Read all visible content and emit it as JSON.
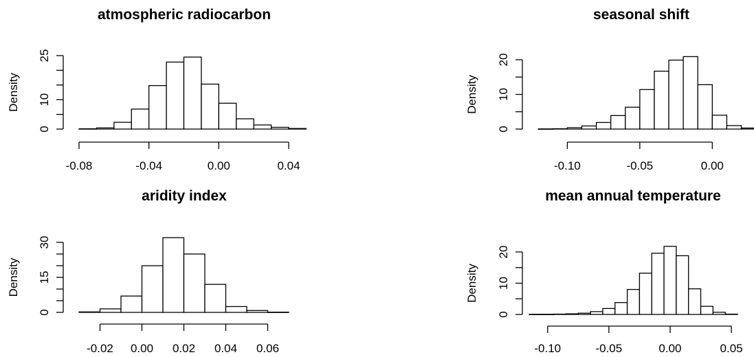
{
  "chart_data": [
    {
      "type": "bar",
      "title": "atmospheric radiocarbon",
      "ylabel": "Density",
      "xlabel": "",
      "xticks": [
        -0.08,
        -0.04,
        0.0,
        0.04
      ],
      "xtick_labels": [
        "-0.08",
        "-0.04",
        "0.00",
        "0.04"
      ],
      "yticks": [
        0,
        5,
        10,
        15,
        20,
        25
      ],
      "ytick_labels": [
        "0",
        "",
        "10",
        "",
        "",
        "25"
      ],
      "bin_edges": [
        -0.08,
        -0.07,
        -0.06,
        -0.05,
        -0.04,
        -0.03,
        -0.02,
        -0.01,
        0.0,
        0.01,
        0.02,
        0.03,
        0.04,
        0.05
      ],
      "values": [
        0.1,
        0.4,
        2.3,
        6.8,
        14.8,
        22.8,
        24.5,
        15.3,
        8.8,
        3.5,
        1.4,
        0.6,
        0.2
      ]
    },
    {
      "type": "bar",
      "title": "seasonal shift",
      "ylabel": "Density",
      "xlabel": "",
      "xticks": [
        -0.1,
        -0.05,
        0.0
      ],
      "xtick_labels": [
        "-0.10",
        "-0.05",
        "0.00"
      ],
      "yticks": [
        0,
        5,
        10,
        15,
        20
      ],
      "ytick_labels": [
        "0",
        "",
        "10",
        "",
        "20"
      ],
      "bin_edges": [
        -0.12,
        -0.11,
        -0.1,
        -0.09,
        -0.08,
        -0.07,
        -0.06,
        -0.05,
        -0.04,
        -0.03,
        -0.02,
        -0.01,
        0.0,
        0.01,
        0.02,
        0.03
      ],
      "values": [
        0.05,
        0.1,
        0.4,
        0.9,
        1.9,
        3.9,
        6.3,
        11.4,
        16.7,
        19.9,
        20.9,
        12.8,
        4.0,
        1.0,
        0.3
      ]
    },
    {
      "type": "bar",
      "title": "aridity index",
      "ylabel": "Density",
      "xlabel": "",
      "xticks": [
        -0.02,
        0.0,
        0.02,
        0.04,
        0.06
      ],
      "xtick_labels": [
        "-0.02",
        "0.00",
        "0.02",
        "0.04",
        "0.06"
      ],
      "yticks": [
        0,
        5,
        10,
        15,
        20,
        25,
        30
      ],
      "ytick_labels": [
        "0",
        "",
        "",
        "15",
        "",
        "",
        "30"
      ],
      "bin_edges": [
        -0.03,
        -0.02,
        -0.01,
        0.0,
        0.01,
        0.02,
        0.03,
        0.04,
        0.05,
        0.06,
        0.07
      ],
      "values": [
        0.2,
        1.5,
        7.0,
        20.0,
        32.0,
        25.0,
        12.0,
        2.5,
        0.8,
        0.1
      ]
    },
    {
      "type": "bar",
      "title": "mean annual temperature",
      "ylabel": "Density",
      "xlabel": "",
      "xticks": [
        -0.1,
        -0.05,
        0.0,
        0.05
      ],
      "xtick_labels": [
        "-0.10",
        "-0.05",
        "0.00",
        "0.05"
      ],
      "yticks": [
        0,
        5,
        10,
        15,
        20
      ],
      "ytick_labels": [
        "0",
        "",
        "10",
        "",
        "20"
      ],
      "bin_edges": [
        -0.115,
        -0.105,
        -0.095,
        -0.085,
        -0.075,
        -0.065,
        -0.055,
        -0.045,
        -0.035,
        -0.025,
        -0.015,
        -0.005,
        0.005,
        0.015,
        0.025,
        0.035,
        0.045,
        0.055
      ],
      "values": [
        0.05,
        0.05,
        0.1,
        0.2,
        0.4,
        0.9,
        1.9,
        3.8,
        8.0,
        13.2,
        19.6,
        21.8,
        18.8,
        8.2,
        2.6,
        0.7,
        0.1
      ]
    }
  ]
}
